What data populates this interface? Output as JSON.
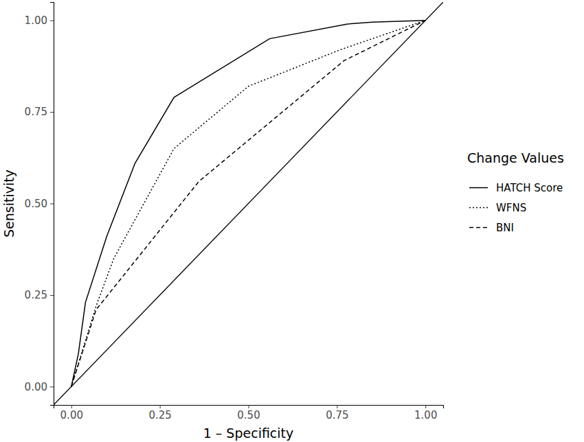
{
  "chart_data": {
    "type": "line",
    "x_label": "1 – Specificity",
    "y_label": "Sensitivity",
    "legend_title": "Change Values",
    "legend": "right",
    "grid": false,
    "xlim": [
      -0.05,
      1.05
    ],
    "ylim": [
      -0.05,
      1.05
    ],
    "xticks": [
      {
        "value": 0,
        "label": "0.00"
      },
      {
        "value": 0.25,
        "label": "0.25"
      },
      {
        "value": 0.5,
        "label": "0.50"
      },
      {
        "value": 0.75,
        "label": "0.75"
      },
      {
        "value": 1,
        "label": "1.00"
      }
    ],
    "yticks": [
      {
        "value": 0,
        "label": "0.00"
      },
      {
        "value": 0.25,
        "label": "0.25"
      },
      {
        "value": 0.5,
        "label": "0.50"
      },
      {
        "value": 0.75,
        "label": "0.75"
      },
      {
        "value": 1,
        "label": "1.00"
      }
    ],
    "series": [
      {
        "name": "HATCH Score",
        "color": "#000000",
        "line_style": "solid",
        "x": [
          0,
          0.02,
          0.04,
          0.1,
          0.18,
          0.29,
          0.56,
          0.78,
          0.85,
          1
        ],
        "values": [
          0,
          0.09,
          0.23,
          0.41,
          0.61,
          0.79,
          0.95,
          0.99,
          0.995,
          1
        ]
      },
      {
        "name": "WFNS",
        "color": "#000000",
        "line_style": "dotted",
        "x": [
          0,
          0.07,
          0.12,
          0.29,
          0.5,
          0.76,
          1
        ],
        "values": [
          0,
          0.22,
          0.35,
          0.65,
          0.82,
          0.92,
          1
        ]
      },
      {
        "name": "BNI",
        "color": "#000000",
        "line_style": "dashed",
        "x": [
          0,
          0.07,
          0.36,
          0.77,
          1
        ],
        "values": [
          0,
          0.21,
          0.56,
          0.89,
          1
        ]
      }
    ]
  }
}
